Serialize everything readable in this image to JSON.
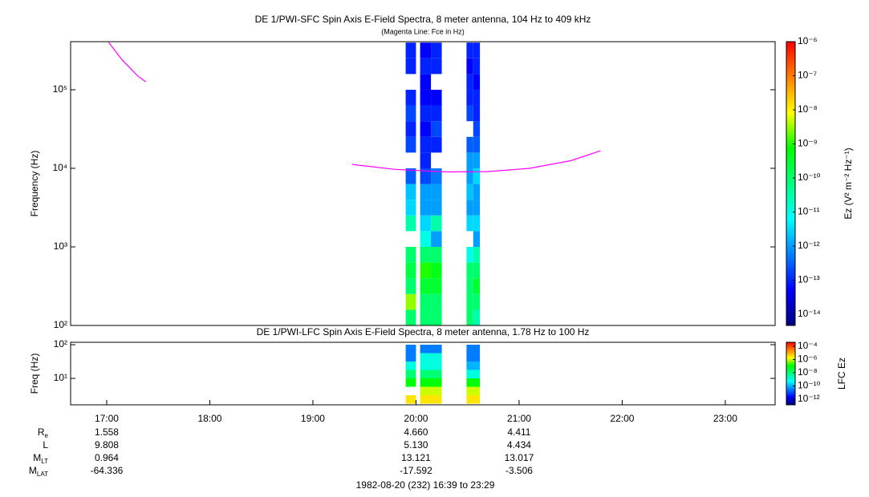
{
  "chart_data": [
    {
      "type": "heatmap",
      "title": "DE 1/PWI-SFC  Spin Axis E-Field Spectra, 8 meter antenna, 104 Hz to 409 kHz",
      "subtitle": "(Magenta Line: Fce in Hz)",
      "y_label": "Frequency (Hz)",
      "xlim": [
        16.65,
        23.4833
      ],
      "ylim": [
        100,
        409000
      ],
      "ylog": true,
      "yticks": [
        {
          "value": 100,
          "label": "10²"
        },
        {
          "value": 1000,
          "label": "10³"
        },
        {
          "value": 10000,
          "label": "10⁴"
        },
        {
          "value": 100000,
          "label": "10⁵"
        }
      ],
      "y_edges": [
        100,
        158,
        251,
        398,
        631,
        1000,
        1585,
        2512,
        3981,
        6310,
        10000,
        15850,
        25120,
        39810,
        63100,
        100000,
        158500,
        251200,
        398100
      ],
      "columns": [
        {
          "x": [
            19.9,
            20.0
          ],
          "z": [
            1e-10,
            3e-09,
            1e-10,
            2e-10,
            1e-10,
            null,
            3e-11,
            3e-12,
            2e-12,
            3e-13,
            null,
            2e-13,
            1e-13,
            2e-13,
            1e-13,
            null,
            1e-13,
            1e-13
          ]
        },
        {
          "x": [
            20.04,
            20.145
          ],
          "z": [
            1e-10,
            1e-10,
            3e-10,
            1e-09,
            1e-10,
            1e-11,
            3e-12,
            1e-12,
            1e-12,
            2e-13,
            1e-13,
            1e-13,
            5e-14,
            1e-13,
            5e-14,
            5e-14,
            1e-13,
            5e-14
          ]
        },
        {
          "x": [
            20.145,
            20.25
          ],
          "z": [
            1e-10,
            1e-10,
            3e-10,
            5e-10,
            1e-10,
            1e-12,
            3e-11,
            1e-12,
            1e-12,
            5e-13,
            null,
            1e-13,
            2e-13,
            1e-13,
            5e-14,
            null,
            1e-13,
            1e-13
          ]
        },
        {
          "x": [
            20.49,
            20.555
          ],
          "z": [
            1e-10,
            1e-10,
            1e-10,
            1e-10,
            1e-11,
            null,
            3e-12,
            1e-12,
            2e-12,
            1e-12,
            1e-12,
            3e-13,
            null,
            2e-13,
            1e-13,
            1e-13,
            5e-14,
            1e-13
          ]
        },
        {
          "x": [
            20.555,
            20.62
          ],
          "z": [
            3e-11,
            1e-10,
            3e-10,
            1e-10,
            3e-11,
            1e-12,
            3e-12,
            1e-12,
            1e-12,
            3e-12,
            1e-12,
            3e-13,
            2e-13,
            1e-13,
            1e-13,
            5e-14,
            1e-13,
            1e-13
          ]
        }
      ],
      "zlim": [
        4.7e-15,
        1e-06
      ],
      "zlog": true,
      "zticks": [
        {
          "value": 1e-06,
          "label": "10⁻⁶"
        },
        {
          "value": 1e-07,
          "label": "10⁻⁷"
        },
        {
          "value": 1e-08,
          "label": "10⁻⁸"
        },
        {
          "value": 1e-09,
          "label": "10⁻⁹"
        },
        {
          "value": 1e-10,
          "label": "10⁻¹⁰"
        },
        {
          "value": 1e-11,
          "label": "10⁻¹¹"
        },
        {
          "value": 1e-12,
          "label": "10⁻¹²"
        },
        {
          "value": 1e-13,
          "label": "10⁻¹³"
        },
        {
          "value": 1e-14,
          "label": "10⁻¹⁴"
        }
      ],
      "z_label": "Ez (V² m⁻² Hz⁻¹)",
      "colormap": [
        "#000080",
        "#0000ff",
        "#0080ff",
        "#00ffff",
        "#00ff80",
        "#00ff00",
        "#ffff00",
        "#ff8000",
        "#ff0000"
      ],
      "overlay": {
        "color": "#ff00ff",
        "x": [
          17.02,
          17.15,
          17.3,
          17.38,
          null,
          19.38,
          19.8,
          20.3,
          20.7,
          21.1,
          21.5,
          21.79
        ],
        "values": [
          400000,
          240000,
          150000,
          126000,
          null,
          11200,
          9700,
          9000,
          9100,
          10000,
          12500,
          16700
        ]
      }
    },
    {
      "type": "heatmap",
      "title": "DE 1/PWI-LFC  Spin Axis E-Field Spectra, 8 meter antenna, 1.78 Hz to 100 Hz",
      "y_label": "Freq (Hz)",
      "xlim": [
        16.65,
        23.4833
      ],
      "xticks": [
        {
          "value": 17,
          "label": "17:00"
        },
        {
          "value": 18,
          "label": "18:00"
        },
        {
          "value": 19,
          "label": "19:00"
        },
        {
          "value": 20,
          "label": "20:00"
        },
        {
          "value": 21,
          "label": "21:00"
        },
        {
          "value": 22,
          "label": "22:00"
        },
        {
          "value": 23,
          "label": "23:00"
        }
      ],
      "ylim": [
        1.64,
        118
      ],
      "ylog": true,
      "yticks": [
        {
          "value": 10,
          "label": "10¹"
        },
        {
          "value": 100,
          "label": "10²"
        }
      ],
      "y_edges": [
        1.78,
        3.16,
        5.62,
        10,
        17.8,
        31.6,
        56.2,
        100
      ],
      "columns": [
        {
          "x": [
            19.9,
            20.0
          ],
          "z": [
            3e-06,
            null,
            1e-07,
            1e-08,
            1e-09,
            3e-11,
            3e-11
          ]
        },
        {
          "x": [
            20.04,
            20.25
          ],
          "z": [
            3e-06,
            1e-06,
            1e-07,
            1e-08,
            1e-09,
            1e-09,
            3e-11
          ]
        },
        {
          "x": [
            20.49,
            20.62
          ],
          "z": [
            3e-06,
            1e-06,
            1e-07,
            1e-09,
            1e-10,
            3e-11,
            3e-11
          ]
        }
      ],
      "zlim": [
        1.4e-13,
        0.0004
      ],
      "zlog": true,
      "zticks": [
        {
          "value": 0.0001,
          "label": "10⁻⁴"
        },
        {
          "value": 1e-06,
          "label": "10⁻⁶"
        },
        {
          "value": 1e-08,
          "label": "10⁻⁸"
        },
        {
          "value": 1e-10,
          "label": "10⁻¹⁰"
        },
        {
          "value": 1e-12,
          "label": "10⁻¹²"
        }
      ],
      "z_label": "LFC Ez",
      "colormap": [
        "#000080",
        "#0000ff",
        "#0080ff",
        "#00ffff",
        "#00ff80",
        "#00ff00",
        "#ffff00",
        "#ff8000",
        "#ff0000"
      ]
    }
  ],
  "ephemeris": {
    "rows": [
      {
        "label": "R",
        "sub": "e",
        "values": [
          "1.558",
          "4.660",
          "4.411"
        ]
      },
      {
        "label": "L",
        "values": [
          "9.808",
          "5.130",
          "4.434"
        ]
      },
      {
        "label": "M",
        "sub": "LT",
        "values": [
          "0.964",
          "13.121",
          "13.017"
        ]
      },
      {
        "label": "M",
        "sub": "LAT",
        "values": [
          "-64.336",
          "-17.592",
          "-3.506"
        ]
      }
    ]
  },
  "footer": "1982-08-20 (232) 16:39 to 23:29"
}
